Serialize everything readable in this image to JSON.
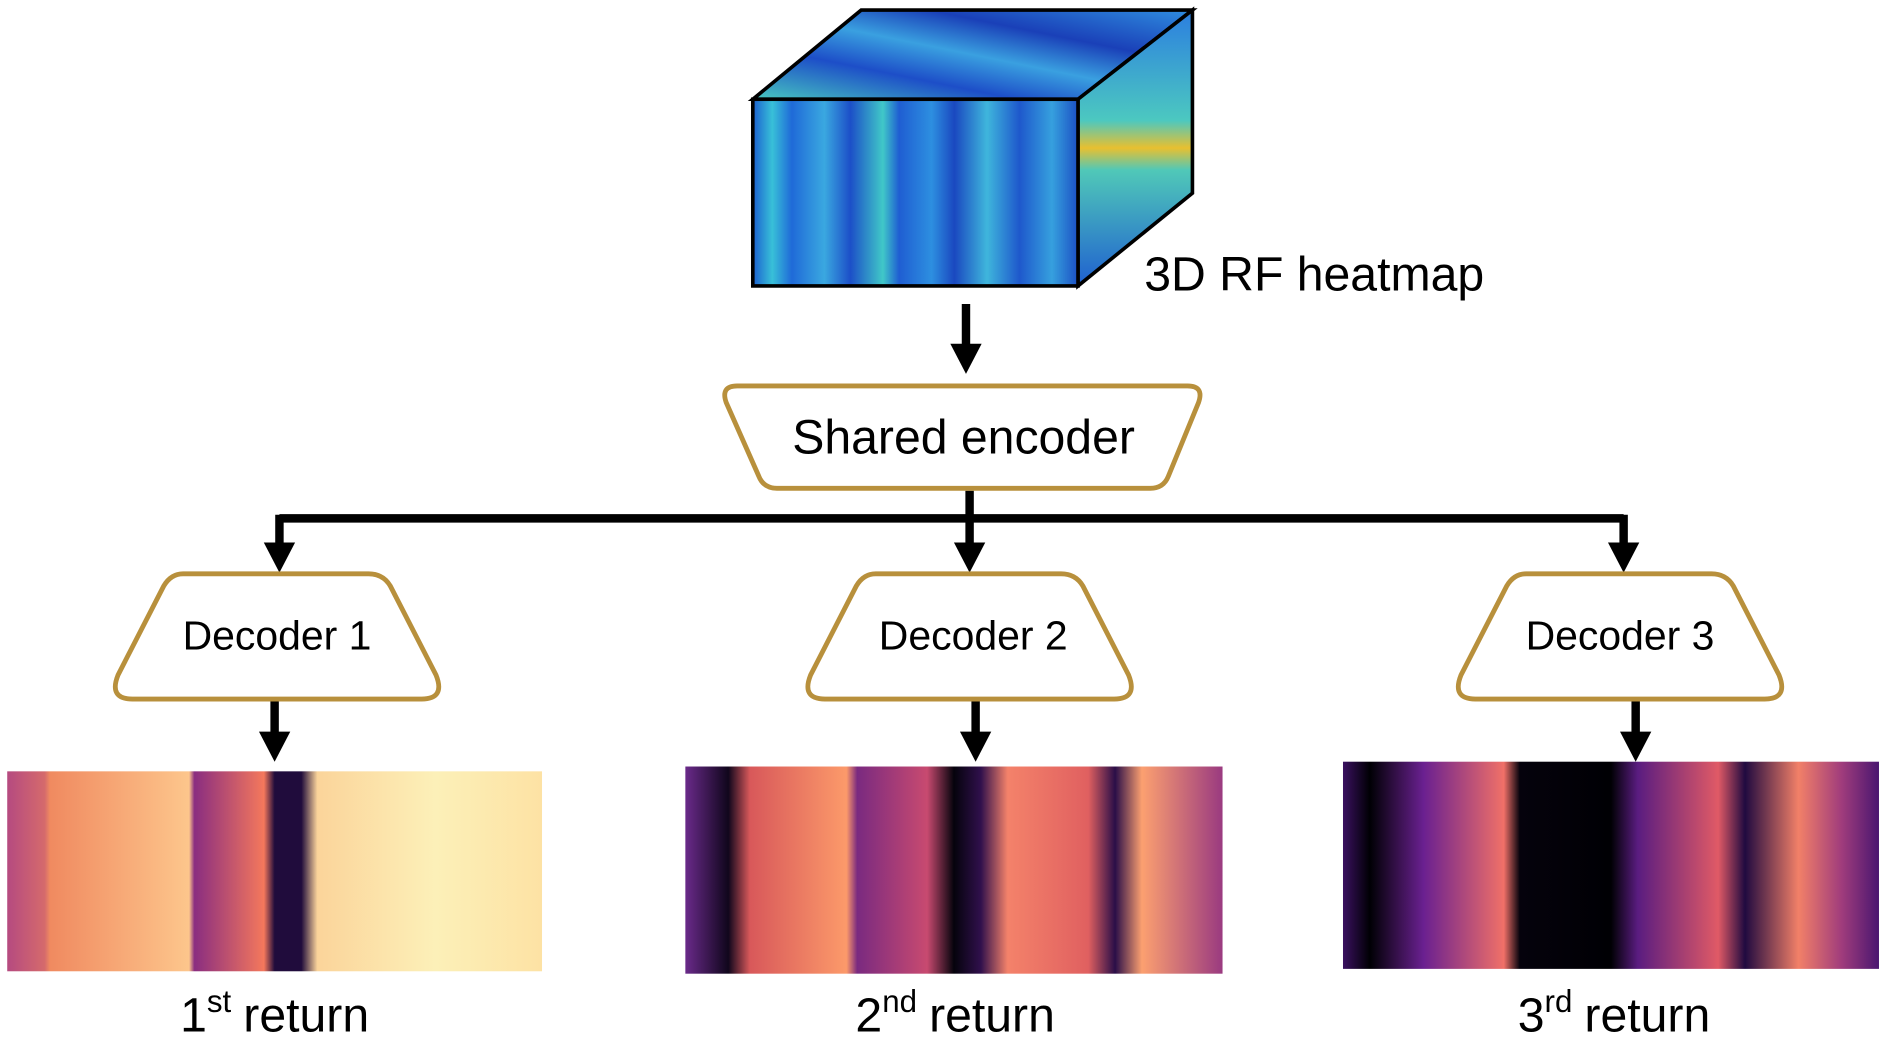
{
  "heatmap": {
    "label": "3D RF heatmap"
  },
  "encoder": {
    "label": "Shared encoder"
  },
  "decoders": [
    {
      "label": "Decoder 1"
    },
    {
      "label": "Decoder 2"
    },
    {
      "label": "Decoder 3"
    }
  ],
  "outputs": [
    {
      "number": "1",
      "suffix": "st",
      "text": "return"
    },
    {
      "number": "2",
      "suffix": "nd",
      "text": "return"
    },
    {
      "number": "3",
      "suffix": "rd",
      "text": "return"
    }
  ]
}
